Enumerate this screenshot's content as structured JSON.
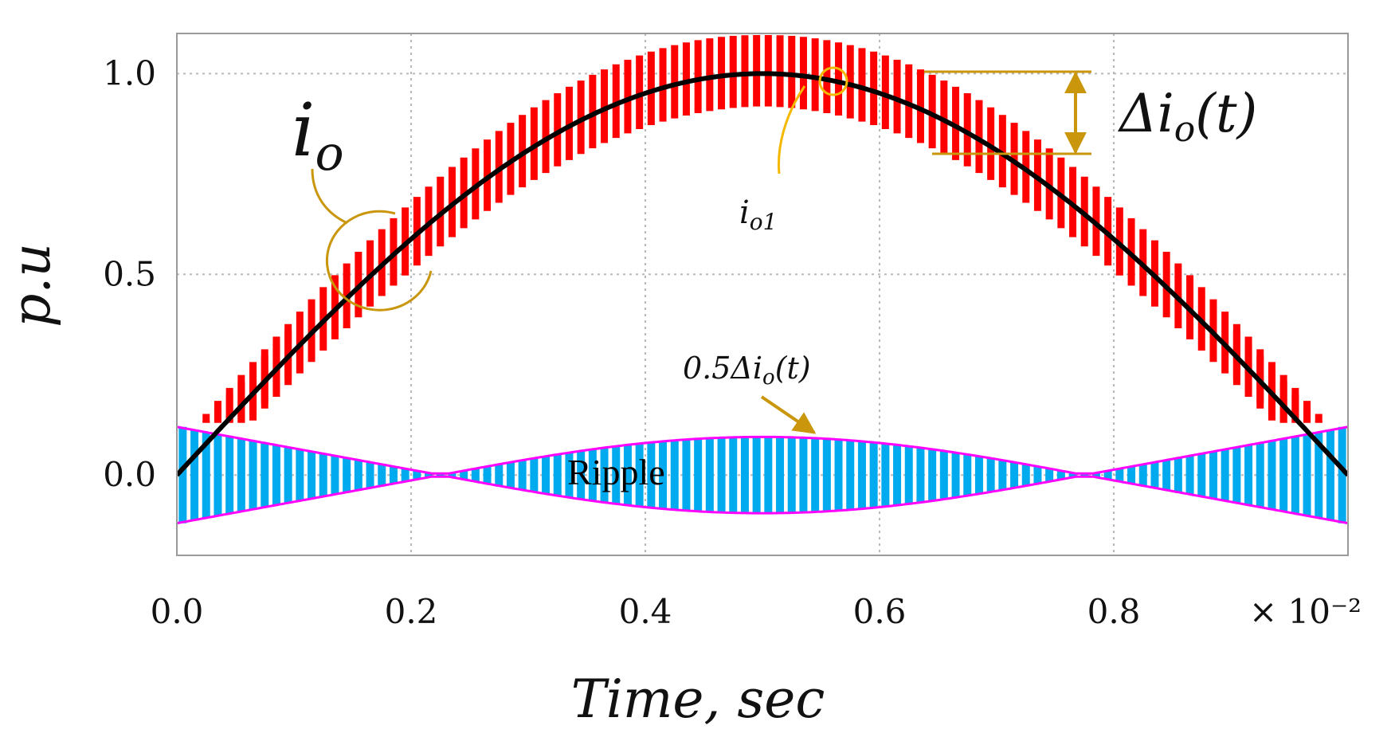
{
  "chart_data": {
    "type": "line",
    "xlabel": "Time, sec",
    "ylabel": "p.u",
    "x_multiplier": "× 10⁻²",
    "xlim": [
      0.0,
      1.0
    ],
    "ylim": [
      -0.2,
      1.1
    ],
    "x_ticks": [
      {
        "value": 0.0,
        "label": "0.0"
      },
      {
        "value": 0.2,
        "label": "0.2"
      },
      {
        "value": 0.4,
        "label": "0.4"
      },
      {
        "value": 0.6,
        "label": "0.6"
      },
      {
        "value": 0.8,
        "label": "0.8"
      }
    ],
    "y_ticks": [
      {
        "value": 0.0,
        "label": "0.0"
      },
      {
        "value": 0.5,
        "label": "0.5"
      },
      {
        "value": 1.0,
        "label": "1.0"
      }
    ],
    "grid": true,
    "switching_cycles": 100,
    "series": [
      {
        "name": "i_o",
        "color": "#ff0000",
        "kind": "sin(pi*t) plus switching ripple",
        "ripple_peak_pu": 0.12
      },
      {
        "name": "i_o1",
        "color": "#000000",
        "kind": "sin(pi*t) fundamental",
        "peak": 1.0,
        "peak_at": 0.5
      },
      {
        "name": "Ripple",
        "color": "#00aaee",
        "kind": "switching ripple",
        "amplitude_range": [
          -0.12,
          0.12
        ]
      },
      {
        "name": "0.5Δi_o(t)",
        "color": "#ff00ff",
        "kind": "ripple envelope",
        "max": 0.12,
        "mid_peak": 0.095,
        "min_at": [
          0.225,
          0.775
        ]
      }
    ],
    "annotations": {
      "io_label": "i",
      "io_sub": "o",
      "io1_label": "i",
      "io1_sub": "o1",
      "delta_label_prefix": "Δi",
      "delta_sub": "o",
      "delta_suffix": "(t)",
      "half_delta_prefix": "0.5Δi",
      "half_delta_sub": "o",
      "half_delta_suffix": "(t)",
      "ripple_label": "Ripple",
      "accent_color": "#c9960c"
    }
  }
}
